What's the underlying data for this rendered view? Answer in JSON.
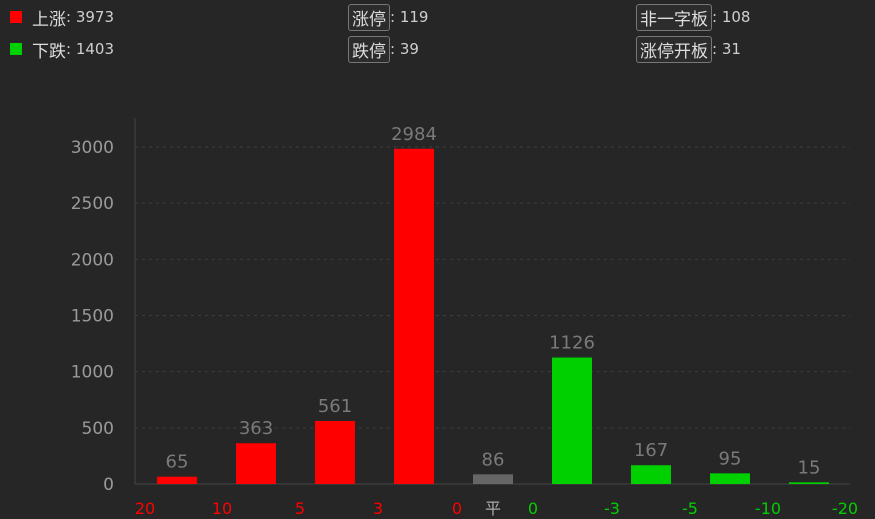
{
  "summary": {
    "up": {
      "label": "上涨",
      "value": "3973",
      "color": "#ff0000"
    },
    "down": {
      "label": "下跌",
      "value": "1403",
      "color": "#00d000"
    },
    "limit_up": {
      "label": "涨停",
      "value": "119"
    },
    "limit_down": {
      "label": "跌停",
      "value": "39"
    },
    "one_word_board": {
      "label": "非一字板",
      "value": "108"
    },
    "limit_up_opened": {
      "label": "涨停开板",
      "value": "31"
    }
  },
  "chart_data": {
    "type": "bar",
    "ylim": [
      0,
      3300
    ],
    "yticks": [
      0,
      500,
      1000,
      1500,
      2000,
      2500,
      3000
    ],
    "grid": true,
    "values": [
      65,
      363,
      561,
      2984,
      86,
      1126,
      167,
      95,
      15
    ],
    "bar_colors": [
      "#ff0000",
      "#ff0000",
      "#ff0000",
      "#ff0000",
      "#666666",
      "#00d000",
      "#00d000",
      "#00d000",
      "#00d000"
    ],
    "xtick_labels": [
      {
        "text": "20",
        "color": "#ff0000"
      },
      {
        "text": "10",
        "color": "#ff0000"
      },
      {
        "text": "5",
        "color": "#ff0000"
      },
      {
        "text": "3",
        "color": "#ff0000"
      },
      {
        "text": "0",
        "color": "#ff0000"
      },
      {
        "text": "平",
        "color": "#aaaaaa"
      },
      {
        "text": "0",
        "color": "#00d000"
      },
      {
        "text": "-3",
        "color": "#00d000"
      },
      {
        "text": "-5",
        "color": "#00d000"
      },
      {
        "text": "-10",
        "color": "#00d000"
      },
      {
        "text": "-20",
        "color": "#00d000"
      }
    ]
  }
}
